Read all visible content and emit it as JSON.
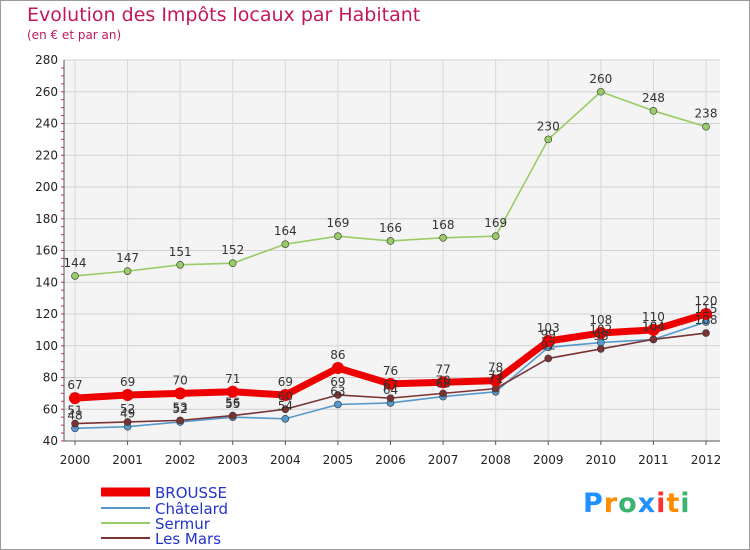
{
  "title": "Evolution des Impôts locaux par Habitant",
  "subtitle": "(en € et par an)",
  "brand": "Proxiti",
  "chart_data": {
    "type": "line",
    "x": [
      2000,
      2001,
      2002,
      2003,
      2004,
      2005,
      2006,
      2007,
      2008,
      2009,
      2010,
      2011,
      2012
    ],
    "ylim": [
      40,
      280
    ],
    "yticks": [
      40,
      60,
      80,
      100,
      120,
      140,
      160,
      180,
      200,
      220,
      240,
      260,
      280
    ],
    "grid": true,
    "legend_position": "bottom-left",
    "series": [
      {
        "name": "BROUSSE",
        "color": "#ee0000",
        "values": [
          67,
          69,
          70,
          71,
          69,
          86,
          76,
          77,
          78,
          103,
          108,
          110,
          120
        ]
      },
      {
        "name": "Châtelard",
        "color": "#5599cc",
        "values": [
          48,
          49,
          52,
          55,
          54,
          63,
          64,
          68,
          71,
          99,
          102,
          104,
          115
        ]
      },
      {
        "name": "Sermur",
        "color": "#99cc66",
        "values": [
          144,
          147,
          151,
          152,
          164,
          169,
          166,
          168,
          169,
          230,
          260,
          248,
          238
        ]
      },
      {
        "name": "Les Mars",
        "color": "#7a3333",
        "values": [
          51,
          52,
          53,
          56,
          60,
          69,
          67,
          70,
          73,
          92,
          98,
          104,
          108
        ]
      }
    ]
  }
}
